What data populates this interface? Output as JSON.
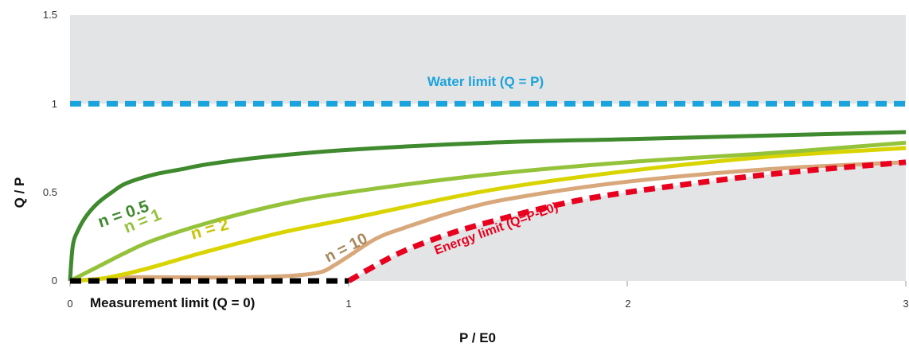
{
  "chart_data": {
    "type": "line",
    "xlabel": "P / E0",
    "ylabel": "Q / P",
    "xlim": [
      0,
      3
    ],
    "ylim": [
      0,
      1.5
    ],
    "x_ticks": [
      "0",
      "1",
      "2",
      "3"
    ],
    "y_ticks": [
      "0",
      "0.5",
      "1",
      "1.5"
    ],
    "background": {
      "shaded_region_color": "#e3e4e6",
      "unshaded_region": "between energy limit and water limit"
    },
    "series": [
      {
        "name": "n = 0.5",
        "color": "#3f8a2e",
        "style": "solid",
        "x": [
          0,
          0.01,
          0.03,
          0.06,
          0.1,
          0.15,
          0.2,
          0.3,
          0.4,
          0.5,
          0.7,
          1,
          1.5,
          2,
          2.5,
          3
        ],
        "y": [
          0,
          0.2,
          0.29,
          0.37,
          0.44,
          0.5,
          0.55,
          0.6,
          0.63,
          0.66,
          0.7,
          0.74,
          0.78,
          0.8,
          0.82,
          0.84
        ]
      },
      {
        "name": "n = 1",
        "color": "#94c23a",
        "style": "solid",
        "x": [
          0,
          0.1,
          0.2,
          0.3,
          0.5,
          0.75,
          1,
          1.5,
          2,
          2.5,
          3
        ],
        "y": [
          0,
          0.08,
          0.16,
          0.23,
          0.33,
          0.43,
          0.5,
          0.6,
          0.67,
          0.72,
          0.78
        ]
      },
      {
        "name": "n = 2",
        "color": "#d9d400",
        "style": "solid",
        "x": [
          0,
          0.1,
          0.2,
          0.3,
          0.5,
          0.75,
          1,
          1.5,
          2,
          2.5,
          3
        ],
        "y": [
          0,
          0.01,
          0.04,
          0.08,
          0.17,
          0.27,
          0.35,
          0.51,
          0.62,
          0.7,
          0.75
        ]
      },
      {
        "name": "n = 10",
        "color": "#d8a77a",
        "style": "solid",
        "x": [
          0,
          0.2,
          0.4,
          0.6,
          0.8,
          0.9,
          0.95,
          1,
          1.1,
          1.2,
          1.4,
          1.6,
          2,
          2.5,
          3
        ],
        "y": [
          0,
          0.02,
          0.02,
          0.02,
          0.03,
          0.05,
          0.09,
          0.14,
          0.24,
          0.3,
          0.4,
          0.47,
          0.56,
          0.63,
          0.67
        ]
      },
      {
        "name": "Energy limit (Q=P-E0)",
        "color": "#e8001e",
        "style": "dashed",
        "x": [
          1,
          1.1,
          1.2,
          1.35,
          1.5,
          1.75,
          2,
          2.5,
          3
        ],
        "y": [
          0,
          0.09,
          0.17,
          0.26,
          0.33,
          0.43,
          0.5,
          0.6,
          0.67
        ]
      },
      {
        "name": "Water limit (Q = P)",
        "color": "#1aa3dd",
        "style": "dashed",
        "x": [
          0,
          3
        ],
        "y": [
          1,
          1
        ]
      },
      {
        "name": "Measurement limit (Q = 0)",
        "color": "#000000",
        "style": "dashed",
        "x": [
          0,
          1
        ],
        "y": [
          0,
          0
        ]
      }
    ],
    "annotations": [
      {
        "text": "Water limit (Q = P)",
        "color": "#1aa3dd"
      },
      {
        "text": "n = 0.5",
        "color": "#3f8a2e"
      },
      {
        "text": "n = 1",
        "color": "#94c23a"
      },
      {
        "text": "n = 2",
        "color": "#c9c400"
      },
      {
        "text": "n = 10",
        "color": "#a8875a"
      },
      {
        "text": "Energy limit (Q=P-E0)",
        "color": "#e8001e"
      },
      {
        "text": "Measurement limit (Q = 0)",
        "color": "#111111"
      }
    ],
    "grid": false
  }
}
